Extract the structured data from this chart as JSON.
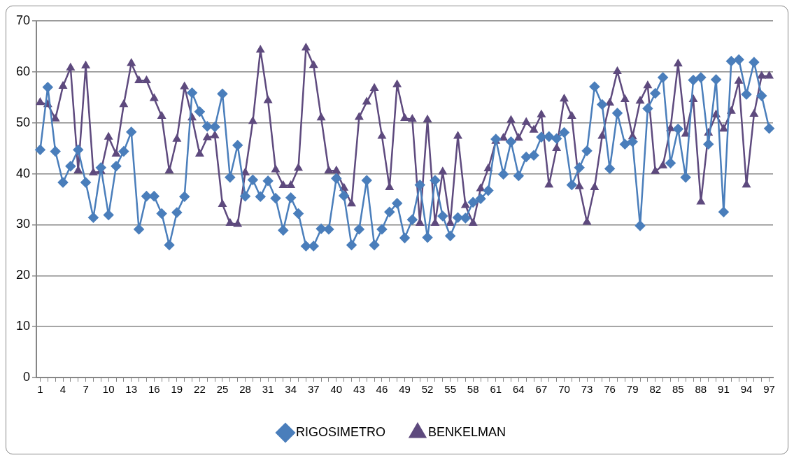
{
  "chart_data": {
    "type": "line",
    "categories": [
      "1",
      null,
      null,
      "4",
      null,
      null,
      "7",
      null,
      null,
      "10",
      null,
      null,
      "13",
      null,
      null,
      "16",
      null,
      null,
      "19",
      null,
      null,
      "22",
      null,
      null,
      "25",
      null,
      null,
      "28",
      null,
      null,
      "31",
      null,
      null,
      "34",
      null,
      null,
      "37",
      null,
      null,
      "40",
      null,
      null,
      "43",
      null,
      null,
      "46",
      null,
      null,
      "49",
      null,
      null,
      "52",
      null,
      null,
      "55",
      null,
      null,
      "58",
      null,
      null,
      "61",
      null,
      null,
      "64",
      null,
      null,
      "67",
      null,
      null,
      "70",
      null,
      null,
      "73",
      null,
      null,
      "76",
      null,
      null,
      "79",
      null,
      null,
      "82",
      null,
      null,
      "85",
      null,
      null,
      "88",
      null,
      null,
      "91",
      null,
      null,
      "94",
      null,
      null,
      "97"
    ],
    "series": [
      {
        "name": "RIGOSIMETRO",
        "color": "#4a7ebb",
        "marker": "diamond",
        "values": [
          44.7,
          57,
          44.4,
          38.3,
          41.5,
          44.7,
          38.3,
          31.4,
          41.2,
          31.9,
          41.5,
          44.4,
          48.2,
          29.1,
          35.6,
          35.6,
          32.2,
          26,
          32.4,
          35.5,
          55.9,
          52.2,
          49.3,
          49.2,
          55.7,
          39.3,
          45.6,
          35.6,
          38.8,
          35.5,
          38.6,
          35.2,
          28.9,
          35.3,
          32.2,
          25.8,
          25.8,
          29.2,
          29.1,
          39.1,
          35.7,
          26,
          29.1,
          38.7,
          26,
          29.1,
          32.5,
          34.2,
          27.4,
          31,
          37.8,
          27.5,
          38.7,
          31.7,
          27.8,
          31.4,
          31.3,
          34.4,
          35.1,
          36.7,
          46.8,
          39.9,
          46.3,
          39.6,
          43.3,
          43.6,
          47.2,
          47.3,
          46.9,
          48.1,
          37.8,
          41.2,
          44.5,
          57.1,
          53.6,
          41,
          51.9,
          45.8,
          46.3,
          29.8,
          52.8,
          55.8,
          58.9,
          42.1,
          48.8,
          39.3,
          58.4,
          58.9,
          45.8,
          58.5,
          32.5,
          62.1,
          62.4,
          55.6,
          61.9,
          55.3,
          48.9
        ]
      },
      {
        "name": "BENKELMAN",
        "color": "#5e4a7e",
        "marker": "triangle",
        "values": [
          54,
          53.6,
          50.8,
          57.2,
          60.8,
          40.6,
          61.2,
          40.2,
          40.5,
          47.2,
          43.9,
          53.6,
          61.7,
          58.3,
          58.3,
          54.8,
          51.3,
          40.6,
          46.8,
          57.1,
          51,
          43.9,
          47.1,
          47.5,
          34,
          30.3,
          30.1,
          40.2,
          50.3,
          64.3,
          54.4,
          40.8,
          37.7,
          37.7,
          41.1,
          64.7,
          61.3,
          51,
          40.6,
          40.6,
          37.2,
          34.1,
          51.1,
          54.1,
          56.8,
          47.4,
          37.3,
          57.5,
          50.9,
          50.7,
          30.3,
          50.6,
          30.3,
          40.4,
          30.3,
          47.4,
          33.8,
          30.3,
          37.1,
          41,
          46.4,
          47,
          50.5,
          47,
          50.1,
          48.6,
          51.6,
          37.8,
          45,
          54.7,
          51.3,
          37.5,
          30.5,
          37.3,
          47.4,
          53.9,
          60.1,
          54.6,
          47.3,
          54.3,
          57.3,
          40.5,
          41.6,
          48.9,
          61.6,
          47.8,
          54.6,
          34.5,
          48,
          51.6,
          48.8,
          52.3,
          58.2,
          37.8,
          51.7,
          59.2,
          59.2
        ]
      }
    ],
    "ylim": [
      0,
      70
    ],
    "yticks": [
      0,
      10,
      20,
      30,
      40,
      50,
      60,
      70
    ],
    "grid": "y",
    "legend": "bottom",
    "line_style": "solid"
  }
}
